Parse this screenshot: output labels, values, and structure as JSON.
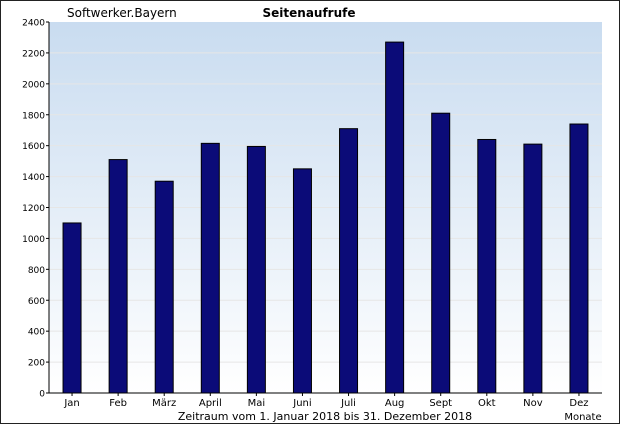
{
  "chart_data": {
    "type": "bar",
    "title": "Seitenaufrufe",
    "subtitle": "Softwerker.Bayern",
    "xlabel": "Zeitraum vom 1. Januar 2018 bis 31. Dezember 2018",
    "x_unit_label": "Monate",
    "ylabel": "",
    "ylim": [
      0,
      2400
    ],
    "yticks": [
      "0",
      "200",
      "400",
      "600",
      "800",
      "1000",
      "1200",
      "1400",
      "1600",
      "1800",
      "2000",
      "2200",
      "2400"
    ],
    "categories": [
      "Jan",
      "Feb",
      "März",
      "April",
      "Mai",
      "Juni",
      "Juli",
      "Aug",
      "Sept",
      "Okt",
      "Nov",
      "Dez"
    ],
    "values": [
      1100,
      1510,
      1370,
      1615,
      1595,
      1450,
      1710,
      2270,
      1810,
      1640,
      1610,
      1740
    ],
    "grid": true,
    "legend": "none",
    "colors": {
      "bar_fill": "#0b0b78",
      "bar_stroke": "#000000",
      "plot_bg_top": "#c9dcf0",
      "plot_bg_bottom": "#ffffff",
      "gridline": "#e6e6e6"
    }
  }
}
